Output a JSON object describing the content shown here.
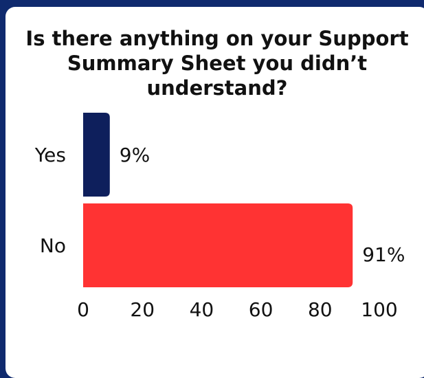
{
  "chart_data": {
    "type": "bar",
    "orientation": "horizontal",
    "title": "Is there anything on your Support\nSummary Sheet you didn’t understand?",
    "categories": [
      "Yes",
      "No"
    ],
    "values": [
      9,
      91
    ],
    "value_labels": [
      "9%",
      "91%"
    ],
    "xlim": [
      0,
      100
    ],
    "xticks": [
      "0",
      "20",
      "40",
      "60",
      "80",
      "100"
    ],
    "grid": false,
    "legend": "none",
    "colors": [
      "#0e1f5c",
      "#ff3333"
    ]
  }
}
